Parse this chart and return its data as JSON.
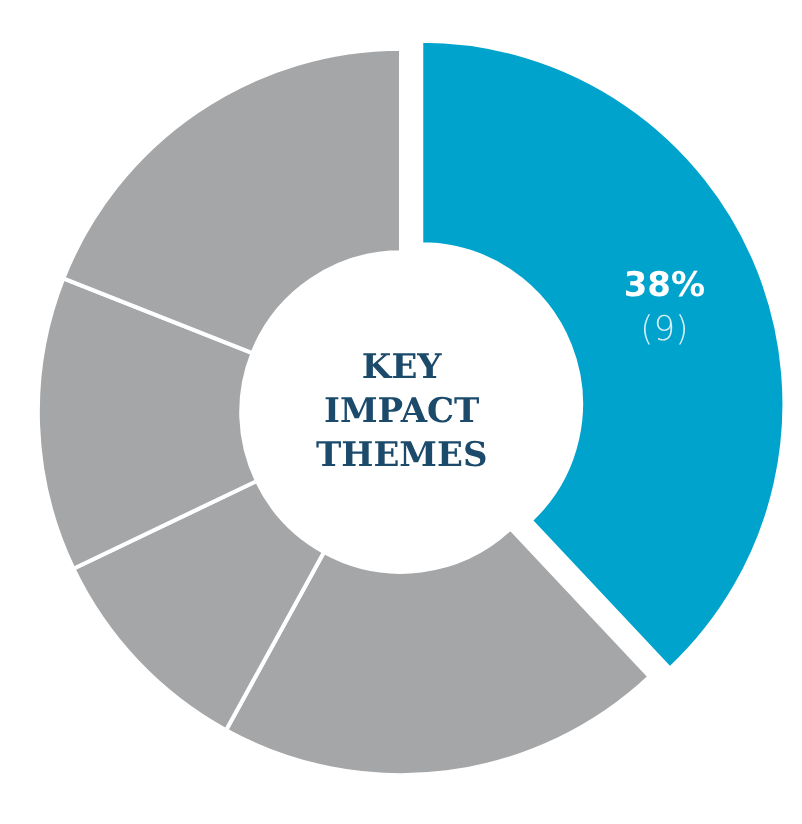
{
  "chart_data": {
    "type": "donut",
    "title": "KEY IMPACT THEMES",
    "categories": [
      null,
      null,
      null,
      null,
      null
    ],
    "values": [
      38,
      20.0,
      9.9,
      13.1,
      19.0
    ],
    "colors": [
      "#00a3cc",
      "#a5a6a8",
      "#a5a6a8",
      "#a5a6a8",
      "#a5a6a8"
    ],
    "value_labels": [
      "38%\n(9)",
      null,
      null,
      null,
      null
    ],
    "legend": false
  }
}
